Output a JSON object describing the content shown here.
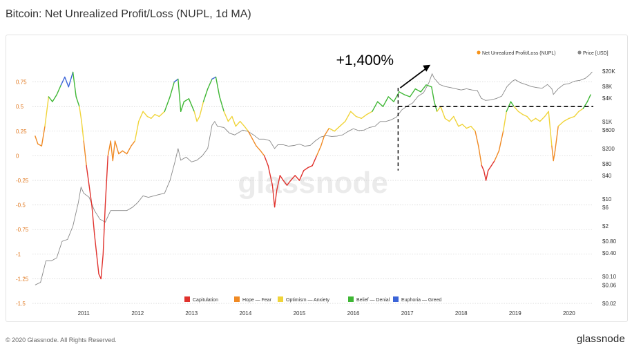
{
  "title": "Bitcoin: Net Unrealized Profit/Loss (NUPL, 1d MA)",
  "copyright": "© 2020 Glassnode. All Rights Reserved.",
  "brand": "glassnode",
  "watermark": "glassnode",
  "annotation": "+1,400%",
  "chart_data": {
    "type": "line",
    "x_ticks": [
      "2011",
      "2012",
      "2013",
      "2014",
      "2015",
      "2016",
      "2017",
      "2018",
      "2019",
      "2020"
    ],
    "y_left": {
      "ticks": [
        0.75,
        0.5,
        0.25,
        0,
        -0.25,
        -0.5,
        -0.75,
        -1,
        -1.25,
        -1.5
      ],
      "tick_labels": [
        "0.75",
        "0.5",
        "0.25",
        "0",
        "-0.25",
        "-0.5",
        "-0.75",
        "-1",
        "-1.25",
        "-1.5"
      ],
      "range": [
        -1.5,
        0.93
      ]
    },
    "y_right": {
      "scale": "log",
      "tick_labels": [
        "$20K",
        "$8K",
        "$4K",
        "$1K",
        "$600",
        "$200",
        "$80",
        "$40",
        "$10",
        "$6",
        "$2",
        "$0.80",
        "$0.40",
        "$0.10",
        "$0.06",
        "$0.02"
      ],
      "ticks": [
        20000,
        8000,
        4000,
        1000,
        600,
        200,
        80,
        40,
        10,
        6,
        2,
        0.8,
        0.4,
        0.1,
        0.06,
        0.02
      ],
      "range": [
        0.02,
        30000
      ]
    },
    "legend_top": [
      {
        "name": "Net Unrealized Profit/Loss (NUPL)",
        "color": "#f7931a"
      },
      {
        "name": "Price [USD]",
        "color": "#888888"
      }
    ],
    "zones": [
      {
        "name": "Capitulation",
        "color": "#e0322d",
        "min": -2,
        "max": 0
      },
      {
        "name": "Hope — Fear",
        "color": "#f08a24",
        "min": 0,
        "max": 0.25
      },
      {
        "name": "Optimism — Anxiety",
        "color": "#f0d43a",
        "min": 0.25,
        "max": 0.5
      },
      {
        "name": "Belief — Denial",
        "color": "#3fb735",
        "min": 0.5,
        "max": 0.75
      },
      {
        "name": "Euphoria — Greed",
        "color": "#3b64d8",
        "min": 0.75,
        "max": 2
      }
    ],
    "series": [
      {
        "name": "Net Unrealized Profit/Loss (NUPL)",
        "axis": "left",
        "points": [
          [
            2010.6,
            0.2
          ],
          [
            2010.65,
            0.12
          ],
          [
            2010.72,
            0.1
          ],
          [
            2010.78,
            0.3
          ],
          [
            2010.85,
            0.6
          ],
          [
            2010.92,
            0.55
          ],
          [
            2011.0,
            0.62
          ],
          [
            2011.08,
            0.72
          ],
          [
            2011.15,
            0.8
          ],
          [
            2011.22,
            0.7
          ],
          [
            2011.3,
            0.85
          ],
          [
            2011.36,
            0.6
          ],
          [
            2011.42,
            0.5
          ],
          [
            2011.46,
            0.35
          ],
          [
            2011.5,
            0.15
          ],
          [
            2011.55,
            -0.1
          ],
          [
            2011.6,
            -0.3
          ],
          [
            2011.65,
            -0.5
          ],
          [
            2011.7,
            -0.8
          ],
          [
            2011.74,
            -1.0
          ],
          [
            2011.78,
            -1.2
          ],
          [
            2011.82,
            -1.25
          ],
          [
            2011.86,
            -1.0
          ],
          [
            2011.9,
            -0.5
          ],
          [
            2011.95,
            0.0
          ],
          [
            2012.0,
            0.15
          ],
          [
            2012.04,
            -0.05
          ],
          [
            2012.08,
            0.15
          ],
          [
            2012.15,
            0.02
          ],
          [
            2012.22,
            0.05
          ],
          [
            2012.3,
            0.02
          ],
          [
            2012.38,
            0.1
          ],
          [
            2012.45,
            0.15
          ],
          [
            2012.52,
            0.35
          ],
          [
            2012.6,
            0.45
          ],
          [
            2012.68,
            0.4
          ],
          [
            2012.75,
            0.38
          ],
          [
            2012.82,
            0.42
          ],
          [
            2012.9,
            0.4
          ],
          [
            2013.0,
            0.45
          ],
          [
            2013.1,
            0.6
          ],
          [
            2013.18,
            0.75
          ],
          [
            2013.25,
            0.78
          ],
          [
            2013.3,
            0.45
          ],
          [
            2013.36,
            0.55
          ],
          [
            2013.45,
            0.58
          ],
          [
            2013.55,
            0.45
          ],
          [
            2013.6,
            0.35
          ],
          [
            2013.65,
            0.4
          ],
          [
            2013.72,
            0.55
          ],
          [
            2013.8,
            0.68
          ],
          [
            2013.88,
            0.78
          ],
          [
            2013.95,
            0.8
          ],
          [
            2014.02,
            0.6
          ],
          [
            2014.1,
            0.45
          ],
          [
            2014.18,
            0.35
          ],
          [
            2014.25,
            0.4
          ],
          [
            2014.32,
            0.3
          ],
          [
            2014.4,
            0.35
          ],
          [
            2014.48,
            0.3
          ],
          [
            2014.55,
            0.25
          ],
          [
            2014.62,
            0.18
          ],
          [
            2014.7,
            0.1
          ],
          [
            2014.78,
            0.05
          ],
          [
            2014.85,
            0.0
          ],
          [
            2014.92,
            -0.1
          ],
          [
            2015.0,
            -0.3
          ],
          [
            2015.04,
            -0.52
          ],
          [
            2015.08,
            -0.35
          ],
          [
            2015.14,
            -0.2
          ],
          [
            2015.2,
            -0.25
          ],
          [
            2015.27,
            -0.3
          ],
          [
            2015.34,
            -0.25
          ],
          [
            2015.42,
            -0.2
          ],
          [
            2015.5,
            -0.25
          ],
          [
            2015.58,
            -0.15
          ],
          [
            2015.66,
            -0.12
          ],
          [
            2015.74,
            -0.1
          ],
          [
            2015.82,
            0.0
          ],
          [
            2015.9,
            0.1
          ],
          [
            2015.96,
            0.2
          ],
          [
            2016.05,
            0.28
          ],
          [
            2016.15,
            0.25
          ],
          [
            2016.25,
            0.3
          ],
          [
            2016.35,
            0.35
          ],
          [
            2016.45,
            0.45
          ],
          [
            2016.55,
            0.4
          ],
          [
            2016.65,
            0.38
          ],
          [
            2016.75,
            0.42
          ],
          [
            2016.85,
            0.45
          ],
          [
            2016.95,
            0.55
          ],
          [
            2017.05,
            0.5
          ],
          [
            2017.15,
            0.6
          ],
          [
            2017.25,
            0.55
          ],
          [
            2017.35,
            0.65
          ],
          [
            2017.45,
            0.62
          ],
          [
            2017.55,
            0.6
          ],
          [
            2017.65,
            0.68
          ],
          [
            2017.75,
            0.65
          ],
          [
            2017.85,
            0.72
          ],
          [
            2017.95,
            0.7
          ],
          [
            2018.0,
            0.55
          ],
          [
            2018.05,
            0.45
          ],
          [
            2018.12,
            0.5
          ],
          [
            2018.2,
            0.38
          ],
          [
            2018.28,
            0.35
          ],
          [
            2018.36,
            0.4
          ],
          [
            2018.45,
            0.3
          ],
          [
            2018.52,
            0.32
          ],
          [
            2018.6,
            0.28
          ],
          [
            2018.68,
            0.3
          ],
          [
            2018.76,
            0.25
          ],
          [
            2018.82,
            0.1
          ],
          [
            2018.88,
            -0.1
          ],
          [
            2018.92,
            -0.15
          ],
          [
            2018.96,
            -0.25
          ],
          [
            2019.0,
            -0.15
          ],
          [
            2019.06,
            -0.1
          ],
          [
            2019.12,
            -0.05
          ],
          [
            2019.2,
            0.05
          ],
          [
            2019.28,
            0.25
          ],
          [
            2019.34,
            0.45
          ],
          [
            2019.42,
            0.55
          ],
          [
            2019.48,
            0.5
          ],
          [
            2019.56,
            0.45
          ],
          [
            2019.64,
            0.42
          ],
          [
            2019.72,
            0.4
          ],
          [
            2019.8,
            0.35
          ],
          [
            2019.88,
            0.38
          ],
          [
            2019.96,
            0.35
          ],
          [
            2020.05,
            0.4
          ],
          [
            2020.12,
            0.45
          ],
          [
            2020.18,
            0.1
          ],
          [
            2020.21,
            -0.05
          ],
          [
            2020.24,
            0.05
          ],
          [
            2020.3,
            0.3
          ],
          [
            2020.4,
            0.35
          ],
          [
            2020.5,
            0.38
          ],
          [
            2020.6,
            0.4
          ],
          [
            2020.68,
            0.45
          ],
          [
            2020.76,
            0.48
          ],
          [
            2020.84,
            0.55
          ],
          [
            2020.9,
            0.62
          ]
        ]
      },
      {
        "name": "Price [USD]",
        "axis": "right",
        "color": "#888888",
        "points": [
          [
            2010.6,
            0.06
          ],
          [
            2010.7,
            0.07
          ],
          [
            2010.8,
            0.25
          ],
          [
            2010.9,
            0.25
          ],
          [
            2011.0,
            0.3
          ],
          [
            2011.1,
            0.8
          ],
          [
            2011.2,
            0.9
          ],
          [
            2011.3,
            2.0
          ],
          [
            2011.4,
            8.0
          ],
          [
            2011.45,
            20.0
          ],
          [
            2011.5,
            14.0
          ],
          [
            2011.6,
            11.0
          ],
          [
            2011.7,
            5.0
          ],
          [
            2011.8,
            3.0
          ],
          [
            2011.9,
            2.5
          ],
          [
            2012.0,
            5.0
          ],
          [
            2012.1,
            5.0
          ],
          [
            2012.2,
            5.0
          ],
          [
            2012.3,
            5.0
          ],
          [
            2012.4,
            6.0
          ],
          [
            2012.5,
            8.0
          ],
          [
            2012.6,
            12.0
          ],
          [
            2012.7,
            11.0
          ],
          [
            2012.8,
            12.0
          ],
          [
            2012.9,
            13.0
          ],
          [
            2013.0,
            14.0
          ],
          [
            2013.1,
            30.0
          ],
          [
            2013.2,
            100.0
          ],
          [
            2013.25,
            200.0
          ],
          [
            2013.3,
            100.0
          ],
          [
            2013.4,
            120.0
          ],
          [
            2013.5,
            90.0
          ],
          [
            2013.6,
            100.0
          ],
          [
            2013.7,
            130.0
          ],
          [
            2013.8,
            200.0
          ],
          [
            2013.88,
            800.0
          ],
          [
            2013.93,
            1000.0
          ],
          [
            2013.98,
            750.0
          ],
          [
            2014.1,
            700.0
          ],
          [
            2014.2,
            500.0
          ],
          [
            2014.3,
            450.0
          ],
          [
            2014.45,
            600.0
          ],
          [
            2014.55,
            550.0
          ],
          [
            2014.65,
            450.0
          ],
          [
            2014.75,
            350.0
          ],
          [
            2014.85,
            350.0
          ],
          [
            2014.95,
            320.0
          ],
          [
            2015.04,
            200.0
          ],
          [
            2015.1,
            250.0
          ],
          [
            2015.2,
            250.0
          ],
          [
            2015.3,
            230.0
          ],
          [
            2015.4,
            240.0
          ],
          [
            2015.5,
            260.0
          ],
          [
            2015.6,
            230.0
          ],
          [
            2015.7,
            240.0
          ],
          [
            2015.8,
            320.0
          ],
          [
            2015.9,
            400.0
          ],
          [
            2016.0,
            430.0
          ],
          [
            2016.1,
            410.0
          ],
          [
            2016.2,
            420.0
          ],
          [
            2016.3,
            450.0
          ],
          [
            2016.4,
            550.0
          ],
          [
            2016.5,
            650.0
          ],
          [
            2016.6,
            580.0
          ],
          [
            2016.7,
            600.0
          ],
          [
            2016.8,
            700.0
          ],
          [
            2016.9,
            750.0
          ],
          [
            2017.0,
            1000.0
          ],
          [
            2017.1,
            1000.0
          ],
          [
            2017.2,
            1100.0
          ],
          [
            2017.3,
            1300.0
          ],
          [
            2017.4,
            2000.0
          ],
          [
            2017.5,
            2500.0
          ],
          [
            2017.6,
            3000.0
          ],
          [
            2017.7,
            4500.0
          ],
          [
            2017.8,
            5500.0
          ],
          [
            2017.9,
            10000.0
          ],
          [
            2017.96,
            17000.0
          ],
          [
            2018.0,
            13000.0
          ],
          [
            2018.1,
            9000.0
          ],
          [
            2018.2,
            8000.0
          ],
          [
            2018.3,
            7500.0
          ],
          [
            2018.4,
            7000.0
          ],
          [
            2018.5,
            6500.0
          ],
          [
            2018.6,
            7000.0
          ],
          [
            2018.7,
            6500.0
          ],
          [
            2018.8,
            6300.0
          ],
          [
            2018.87,
            4000.0
          ],
          [
            2018.95,
            3500.0
          ],
          [
            2019.05,
            3600.0
          ],
          [
            2019.15,
            3900.0
          ],
          [
            2019.25,
            4500.0
          ],
          [
            2019.35,
            8000.0
          ],
          [
            2019.45,
            11000.0
          ],
          [
            2019.5,
            12000.0
          ],
          [
            2019.6,
            10000.0
          ],
          [
            2019.7,
            9000.0
          ],
          [
            2019.8,
            8000.0
          ],
          [
            2019.9,
            7500.0
          ],
          [
            2020.0,
            7200.0
          ],
          [
            2020.1,
            9000.0
          ],
          [
            2020.18,
            7000.0
          ],
          [
            2020.21,
            5000.0
          ],
          [
            2020.3,
            7000.0
          ],
          [
            2020.4,
            9000.0
          ],
          [
            2020.5,
            9500.0
          ],
          [
            2020.6,
            11000.0
          ],
          [
            2020.7,
            11500.0
          ],
          [
            2020.8,
            13000.0
          ],
          [
            2020.88,
            16000.0
          ],
          [
            2020.93,
            19000.0
          ]
        ]
      }
    ],
    "reference_line": {
      "y": 0.5,
      "x_start": 2017.33,
      "style": "dashed"
    },
    "grid": true
  }
}
